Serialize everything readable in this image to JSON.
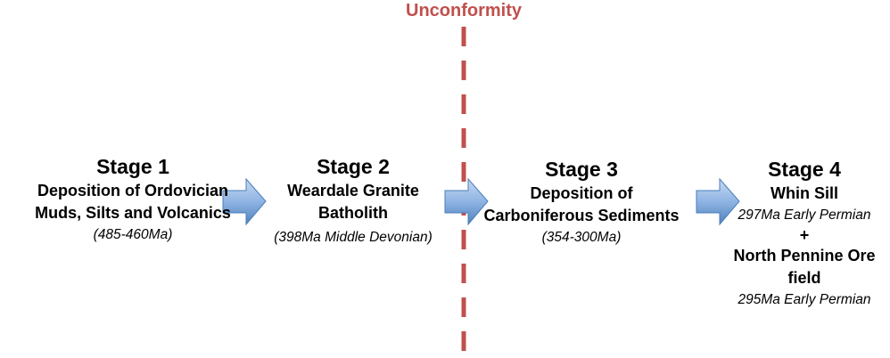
{
  "colors": {
    "unconformity": "#c0504d",
    "arrow_fill_light": "#c6d9f1",
    "arrow_fill_dark": "#4f81bd",
    "arrow_stroke": "#4a7ebb"
  },
  "unconformity": {
    "label": "Unconformity"
  },
  "stages": [
    {
      "title": "Stage 1",
      "description": [
        "Deposition of Ordovician",
        "Muds, Silts and Volcanics"
      ],
      "date": "(485-460Ma)"
    },
    {
      "title": "Stage 2",
      "description": [
        "Weardale Granite",
        "Batholith"
      ],
      "date": "(398Ma Middle Devonian)"
    },
    {
      "title": "Stage 3",
      "description": [
        "Deposition of",
        "Carboniferous Sediments"
      ],
      "date": "(354-300Ma)"
    },
    {
      "title": "Stage 4",
      "description": [
        "Whin Sill"
      ],
      "date": "297Ma Early Permian",
      "plus": "+",
      "description2": [
        "North Pennine Ore",
        "field"
      ],
      "date2": "295Ma Early Permian"
    }
  ],
  "arrows": [
    {
      "from": "stage-1",
      "to": "stage-2",
      "icon": "right-arrow-icon"
    },
    {
      "from": "stage-2",
      "to": "stage-3",
      "icon": "right-arrow-icon"
    },
    {
      "from": "stage-3",
      "to": "stage-4",
      "icon": "right-arrow-icon"
    }
  ]
}
